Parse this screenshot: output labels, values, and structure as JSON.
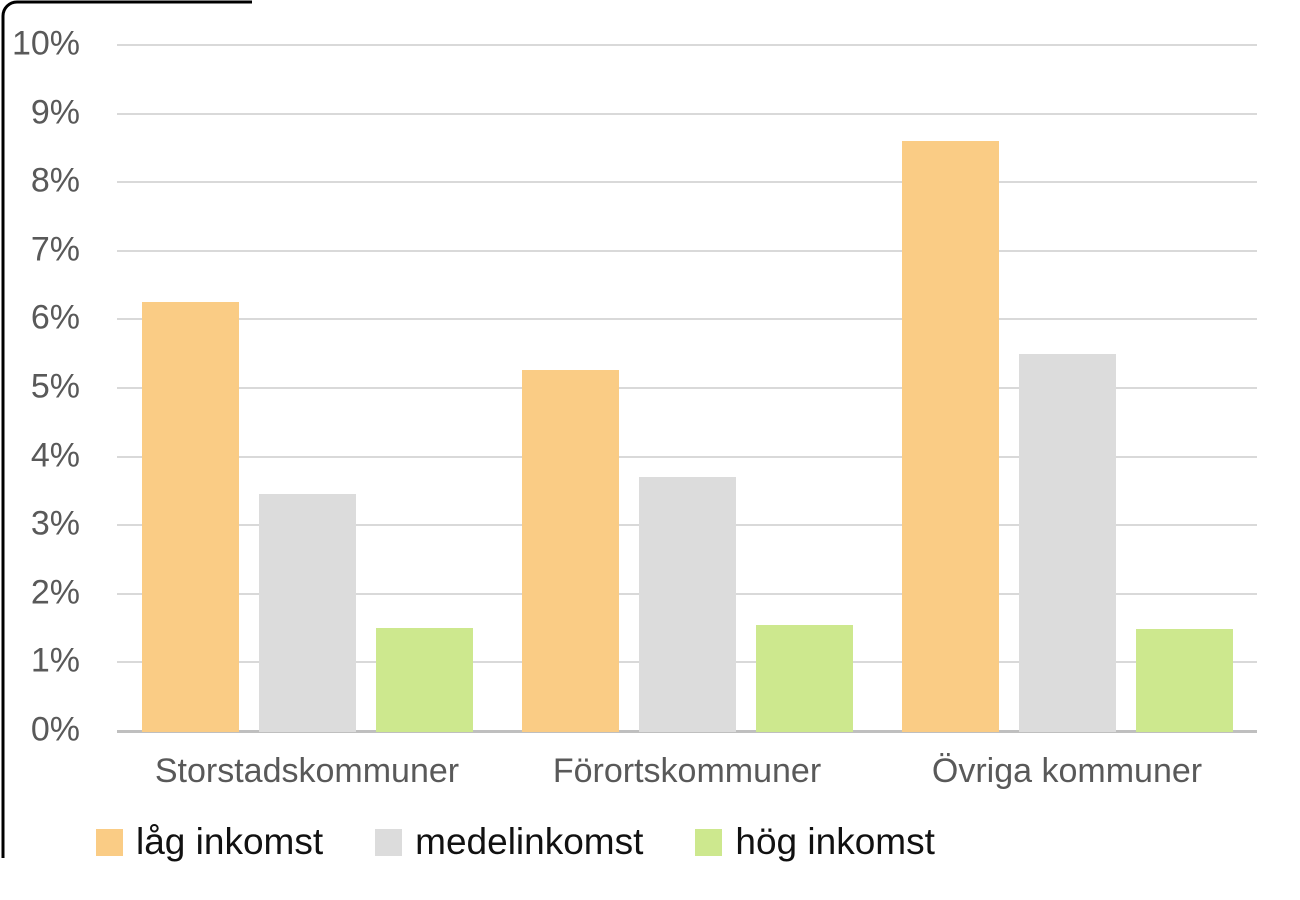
{
  "chart_data": {
    "type": "bar",
    "title": "",
    "xlabel": "",
    "ylabel": "",
    "categories": [
      "Storstadskommuner",
      "Förortskommuner",
      "Övriga kommuner"
    ],
    "series": [
      {
        "name": "låg inkomst",
        "color": "#FACC85",
        "values": [
          6.25,
          5.26,
          8.6
        ]
      },
      {
        "name": "medelinkomst",
        "color": "#DCDCDC",
        "values": [
          3.45,
          3.7,
          5.5
        ]
      },
      {
        "name": "hög inkomst",
        "color": "#CDE88E",
        "values": [
          1.5,
          1.55,
          1.48
        ]
      }
    ],
    "ylim": [
      0,
      10
    ],
    "ytick_step": 1,
    "yticklabels": [
      "0%",
      "1%",
      "2%",
      "3%",
      "4%",
      "5%",
      "6%",
      "7%",
      "8%",
      "9%",
      "10%"
    ],
    "grid": true,
    "legend_position": "bottom",
    "colors": {
      "gridline": "#D9D9D9",
      "axis_line": "#BFBFBF",
      "tick_text": "#595959",
      "category_text": "#595959",
      "legend_text": "#111111",
      "background": "#FFFFFF",
      "border_fragment": "#000000"
    }
  }
}
